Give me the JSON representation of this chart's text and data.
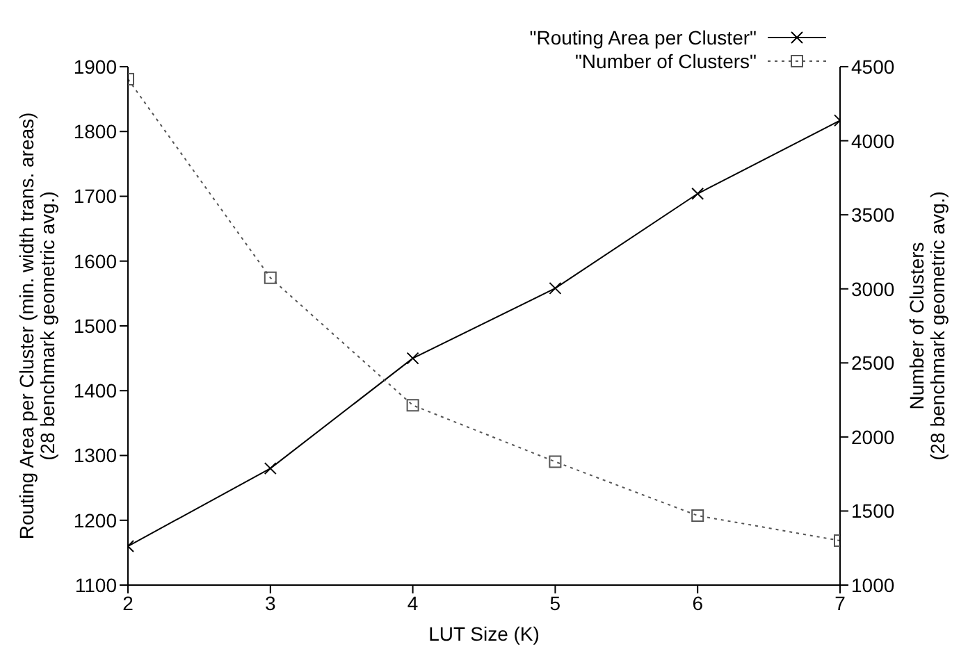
{
  "chart_data": {
    "type": "line",
    "xlabel": "LUT Size (K)",
    "ylabel": "Routing Area per Cluster (min. width trans. areas)\n(28 benchmark geometric avg.)",
    "y2label": "Number of Clusters\n(28 benchmark geometric avg.)",
    "x": [
      2,
      3,
      4,
      5,
      6,
      7
    ],
    "series": [
      {
        "name": "\"Routing Area per Cluster\"",
        "color": "#000000",
        "values": [
          1160,
          1280,
          1450,
          1558,
          1704,
          1817
        ],
        "marker": "cross",
        "line_style": "solid"
      },
      {
        "name": "\"Number of Clusters\"",
        "color": "#555555",
        "values": [
          4416,
          3075,
          2214,
          1833,
          1469,
          1300
        ],
        "marker": "square",
        "line_style": "dotted",
        "axis": "y2"
      }
    ],
    "xlim": [
      2,
      7
    ],
    "xticks": [
      2,
      3,
      4,
      5,
      6,
      7
    ],
    "ylim": [
      1100,
      1900
    ],
    "yticks": [
      1100,
      1200,
      1300,
      1400,
      1500,
      1600,
      1700,
      1800,
      1900
    ],
    "y2lim": [
      1000,
      4500
    ],
    "y2ticks": [
      1000,
      1500,
      2000,
      2500,
      3000,
      3500,
      4000,
      4500
    ],
    "grid": false,
    "legend": "top right"
  }
}
